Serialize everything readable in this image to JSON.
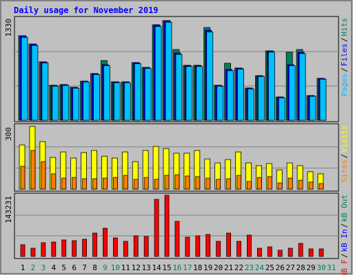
{
  "chart_data": [
    {
      "type": "bar",
      "title": "Daily usage for November 2019",
      "ylim": [
        0,
        1330
      ],
      "yticks": [
        1330
      ],
      "separator": "/",
      "series": [
        {
          "name": "Hits",
          "color": "#00805c",
          "values": [
            1091,
            984,
            754,
            452,
            461,
            426,
            505,
            603,
            771,
            497,
            497,
            745,
            683,
            1232,
            1286,
            913,
            709,
            709,
            1197,
            452,
            736,
            674,
            417,
            576,
            896,
            301,
            878,
            913,
            319,
            541,
            null
          ]
        },
        {
          "name": "Files",
          "color": "#0000ff",
          "values": [
            1091,
            984,
            754,
            452,
            461,
            426,
            505,
            603,
            718,
            497,
            497,
            745,
            683,
            1232,
            1286,
            869,
            709,
            709,
            1162,
            452,
            656,
            674,
            417,
            576,
            896,
            301,
            718,
            878,
            319,
            541,
            null
          ]
        },
        {
          "name": "Pages",
          "color": "#00c0ff",
          "values": [
            1070,
            965,
            740,
            440,
            450,
            415,
            495,
            590,
            705,
            485,
            485,
            730,
            670,
            1210,
            1265,
            850,
            695,
            695,
            1140,
            440,
            640,
            660,
            405,
            565,
            880,
            290,
            705,
            860,
            310,
            530,
            null
          ]
        }
      ]
    },
    {
      "type": "bar",
      "ylim": [
        0,
        300
      ],
      "yticks": [
        300
      ],
      "series": [
        {
          "name": "Visits",
          "color": "#ffff00",
          "values": [
            209,
            297,
            225,
            150,
            176,
            147,
            173,
            183,
            156,
            147,
            176,
            130,
            183,
            202,
            192,
            170,
            170,
            183,
            143,
            124,
            140,
            176,
            124,
            111,
            121,
            91,
            124,
            111,
            82,
            72,
            null
          ]
        },
        {
          "name": "Sites",
          "color": "#ff8000",
          "values": [
            108,
            183,
            130,
            72,
            52,
            55,
            49,
            49,
            52,
            55,
            65,
            46,
            55,
            46,
            65,
            68,
            62,
            59,
            52,
            46,
            49,
            65,
            36,
            55,
            59,
            29,
            52,
            42,
            33,
            26,
            null
          ]
        }
      ]
    },
    {
      "type": "bar",
      "ylim": [
        0,
        143231
      ],
      "yticks": [
        143231
      ],
      "categories": [
        "1",
        "2",
        "3",
        "4",
        "5",
        "6",
        "7",
        "8",
        "9",
        "10",
        "11",
        "12",
        "13",
        "14",
        "15",
        "16",
        "17",
        "18",
        "19",
        "20",
        "21",
        "22",
        "23",
        "24",
        "25",
        "26",
        "27",
        "28",
        "29",
        "30",
        "31"
      ],
      "category_colors": [
        "#000000",
        "#00805c",
        "#00805c",
        "#000000",
        "#000000",
        "#000000",
        "#000000",
        "#000000",
        "#00805c",
        "#00805c",
        "#000000",
        "#000000",
        "#000000",
        "#000000",
        "#000000",
        "#00805c",
        "#00805c",
        "#000000",
        "#000000",
        "#000000",
        "#000000",
        "#000000",
        "#00805c",
        "#00805c",
        "#000000",
        "#000000",
        "#000000",
        "#000000",
        "#000000",
        "#00805c",
        "#00805c"
      ],
      "series": [
        {
          "name": "kB Out",
          "color": "#00805c",
          "values": [
            0,
            0,
            0,
            0,
            0,
            0,
            0,
            0,
            0,
            0,
            0,
            0,
            0,
            0,
            0,
            0,
            0,
            0,
            0,
            0,
            0,
            0,
            0,
            0,
            0,
            0,
            0,
            0,
            0,
            0,
            null
          ]
        },
        {
          "name": "kB In",
          "color": "#0000ff",
          "values": [
            0,
            0,
            0,
            0,
            0,
            0,
            0,
            0,
            0,
            0,
            0,
            0,
            0,
            0,
            0,
            0,
            0,
            0,
            0,
            0,
            0,
            0,
            0,
            0,
            0,
            0,
            0,
            0,
            0,
            0,
            null
          ]
        },
        {
          "name": "kB F",
          "color": "#ff0000",
          "values": [
            27055,
            19098,
            31829,
            33420,
            38194,
            36603,
            39786,
            54109,
            65249,
            42969,
            35012,
            47744,
            46152,
            132091,
            141640,
            81164,
            44561,
            47744,
            50927,
            35012,
            54109,
            35012,
            49335,
            19098,
            22280,
            14323,
            19098,
            30238,
            17506,
            17506,
            null
          ]
        }
      ]
    }
  ]
}
